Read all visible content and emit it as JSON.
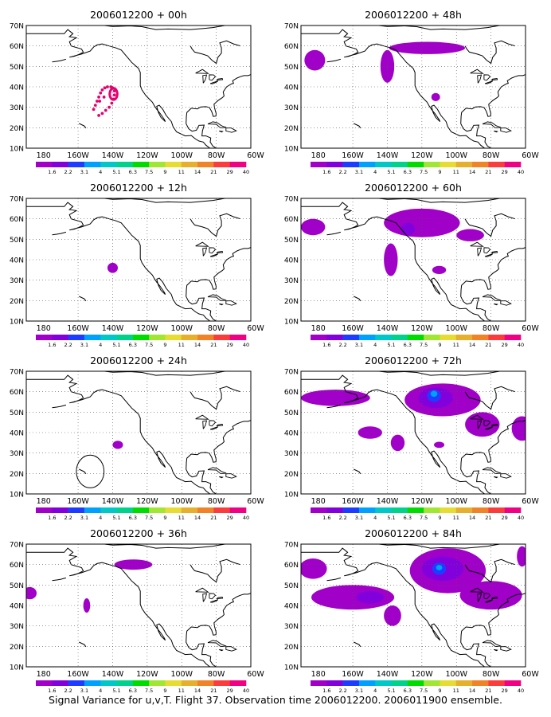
{
  "figure": {
    "caption": "Signal Variance for u,v,T. Flight 37. Observation time 2006012200. 2006011900 ensemble."
  },
  "axes": {
    "lat_labels": [
      "70N",
      "60N",
      "50N",
      "40N",
      "30N",
      "20N",
      "10N"
    ],
    "lon_labels": [
      "180",
      "160W",
      "140W",
      "120W",
      "100W",
      "80W",
      "60W"
    ],
    "lon_range": [
      -190,
      -60
    ],
    "lat_range": [
      10,
      70
    ]
  },
  "legend": {
    "labels": [
      "1.6",
      "2.2",
      "3.1",
      "4",
      "5.1",
      "6.3",
      "7.5",
      "9",
      "11",
      "14",
      "21",
      "29",
      "40"
    ],
    "colors": [
      "#a000c8",
      "#8200dc",
      "#1e3cff",
      "#00a0ff",
      "#00c8c8",
      "#00d28c",
      "#00dc00",
      "#a0e632",
      "#e6dc32",
      "#e6af2d",
      "#f08228",
      "#fa3c3c",
      "#f00082"
    ]
  },
  "panels": [
    {
      "title": "2006012200 + 00h",
      "features": [
        {
          "kind": "dots",
          "color": "#e8006e",
          "points": [
            [
              -141,
              40
            ],
            [
              -143,
              40
            ],
            [
              -144.5,
              39.5
            ],
            [
              -146,
              38.5
            ],
            [
              -147,
              37
            ],
            [
              -148,
              35
            ],
            [
              -149,
              33
            ],
            [
              -150,
              31
            ],
            [
              -151,
              29
            ],
            [
              -148,
              26
            ],
            [
              -146,
              27
            ],
            [
              -144,
              28.5
            ],
            [
              -142,
              30
            ],
            [
              -140.5,
              32
            ],
            [
              -139.5,
              34
            ],
            [
              -139,
              36
            ],
            [
              -139,
              38
            ],
            [
              -140,
              39.5
            ],
            [
              -147.5,
              33
            ],
            [
              -145,
              35
            ]
          ]
        },
        {
          "kind": "ring",
          "color": "#e8006e",
          "center": [
            -139.5,
            36.5
          ],
          "radius": [
            2.2,
            2.8
          ]
        }
      ]
    },
    {
      "title": "2006012200 + 48h",
      "features": [
        {
          "kind": "blob",
          "color": "#a000c8",
          "center": [
            -117,
            59
          ],
          "radius": [
            22,
            3
          ]
        },
        {
          "kind": "blob",
          "color": "#a000c8",
          "center": [
            -140,
            50
          ],
          "radius": [
            4,
            8
          ]
        },
        {
          "kind": "blob",
          "color": "#a000c8",
          "center": [
            -182,
            53
          ],
          "radius": [
            6,
            5
          ]
        },
        {
          "kind": "blob",
          "color": "#a000c8",
          "center": [
            -112,
            35
          ],
          "radius": [
            2.5,
            2
          ]
        }
      ]
    },
    {
      "title": "2006012200 + 12h",
      "features": [
        {
          "kind": "blob",
          "color": "#a000c8",
          "center": [
            -140,
            36
          ],
          "radius": [
            3,
            2.5
          ]
        }
      ]
    },
    {
      "title": "2006012200 + 60h",
      "features": [
        {
          "kind": "blob",
          "color": "#a000c8",
          "center": [
            -120,
            58
          ],
          "radius": [
            22,
            7
          ]
        },
        {
          "kind": "blob",
          "color": "#a000c8",
          "center": [
            -92,
            52
          ],
          "radius": [
            8,
            3
          ]
        },
        {
          "kind": "blob",
          "color": "#a000c8",
          "center": [
            -138,
            40
          ],
          "radius": [
            4,
            8
          ]
        },
        {
          "kind": "blob",
          "color": "#a000c8",
          "center": [
            -183,
            56
          ],
          "radius": [
            7,
            4
          ]
        },
        {
          "kind": "blob",
          "color": "#a000c8",
          "center": [
            -110,
            35
          ],
          "radius": [
            4,
            2
          ]
        },
        {
          "kind": "blob",
          "color": "#8200dc",
          "center": [
            -128,
            55
          ],
          "radius": [
            4,
            3
          ]
        }
      ]
    },
    {
      "title": "2006012200 + 24h",
      "features": [
        {
          "kind": "blob",
          "color": "#a000c8",
          "center": [
            -137,
            34
          ],
          "radius": [
            3,
            2
          ]
        },
        {
          "kind": "outline",
          "color": "#000000",
          "center": [
            -153,
            21
          ],
          "radius": [
            8,
            8
          ]
        }
      ]
    },
    {
      "title": "2006012200 + 72h",
      "features": [
        {
          "kind": "blob",
          "color": "#a000c8",
          "center": [
            -108,
            56
          ],
          "radius": [
            22,
            8
          ]
        },
        {
          "kind": "blob",
          "color": "#a000c8",
          "center": [
            -85,
            44
          ],
          "radius": [
            10,
            6
          ]
        },
        {
          "kind": "blob",
          "color": "#a000c8",
          "center": [
            -170,
            57
          ],
          "radius": [
            20,
            4
          ]
        },
        {
          "kind": "blob",
          "color": "#a000c8",
          "center": [
            -150,
            40
          ],
          "radius": [
            7,
            3
          ]
        },
        {
          "kind": "blob",
          "color": "#a000c8",
          "center": [
            -134,
            35
          ],
          "radius": [
            4,
            4
          ]
        },
        {
          "kind": "blob",
          "color": "#a000c8",
          "center": [
            -62,
            42
          ],
          "radius": [
            6,
            6
          ]
        },
        {
          "kind": "blob",
          "color": "#a000c8",
          "center": [
            -110,
            34
          ],
          "radius": [
            3,
            1.5
          ]
        },
        {
          "kind": "blob",
          "color": "#8200dc",
          "center": [
            -112,
            57
          ],
          "radius": [
            10,
            5
          ]
        },
        {
          "kind": "blob",
          "color": "#1e3cff",
          "center": [
            -113,
            58
          ],
          "radius": [
            4,
            3
          ]
        },
        {
          "kind": "blob",
          "color": "#00a0ff",
          "center": [
            -113,
            59
          ],
          "radius": [
            2,
            1.5
          ]
        }
      ]
    },
    {
      "title": "2006012200 + 36h",
      "features": [
        {
          "kind": "blob",
          "color": "#a000c8",
          "center": [
            -128,
            60
          ],
          "radius": [
            11,
            2.5
          ]
        },
        {
          "kind": "blob",
          "color": "#a000c8",
          "center": [
            -155,
            40
          ],
          "radius": [
            2,
            3.5
          ]
        },
        {
          "kind": "blob",
          "color": "#a000c8",
          "center": [
            -188,
            46
          ],
          "radius": [
            4,
            3
          ]
        }
      ]
    },
    {
      "title": "2006012200 + 84h",
      "features": [
        {
          "kind": "blob",
          "color": "#a000c8",
          "center": [
            -105,
            57
          ],
          "radius": [
            22,
            11
          ]
        },
        {
          "kind": "blob",
          "color": "#a000c8",
          "center": [
            -80,
            45
          ],
          "radius": [
            18,
            7
          ]
        },
        {
          "kind": "blob",
          "color": "#a000c8",
          "center": [
            -160,
            44
          ],
          "radius": [
            24,
            6
          ]
        },
        {
          "kind": "blob",
          "color": "#a000c8",
          "center": [
            -183,
            58
          ],
          "radius": [
            8,
            5
          ]
        },
        {
          "kind": "blob",
          "color": "#a000c8",
          "center": [
            -137,
            35
          ],
          "radius": [
            5,
            5
          ]
        },
        {
          "kind": "blob",
          "color": "#a000c8",
          "center": [
            -62,
            64
          ],
          "radius": [
            3,
            5
          ]
        },
        {
          "kind": "blob",
          "color": "#8200dc",
          "center": [
            -108,
            58
          ],
          "radius": [
            12,
            6
          ]
        },
        {
          "kind": "blob",
          "color": "#8200dc",
          "center": [
            -150,
            44
          ],
          "radius": [
            8,
            3
          ]
        },
        {
          "kind": "blob",
          "color": "#1e3cff",
          "center": [
            -110,
            58
          ],
          "radius": [
            4,
            3
          ]
        },
        {
          "kind": "blob",
          "color": "#00a0ff",
          "center": [
            -110,
            58.5
          ],
          "radius": [
            1.8,
            1.3
          ]
        }
      ]
    }
  ]
}
